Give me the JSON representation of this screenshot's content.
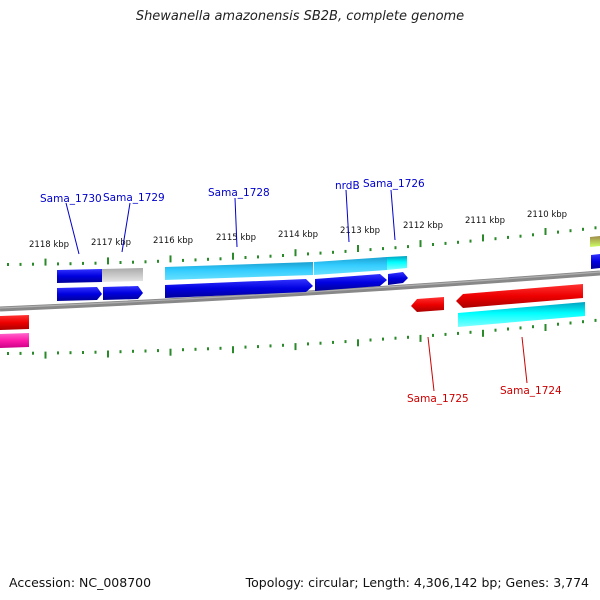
{
  "title": "Shewanella amazonensis SB2B, complete genome",
  "footer": {
    "accession": "Accession: NC_008700",
    "summary": "Topology: circular; Length: 4,306,142 bp; Genes: 3,774"
  },
  "colors": {
    "forward_label": "#0000cc",
    "reverse_label": "#cc0000",
    "tick": "#2a8a2a",
    "backbone": "#888888"
  },
  "ticks": [
    "2118 kbp",
    "2117 kbp",
    "2116 kbp",
    "2115 kbp",
    "2114 kbp",
    "2113 kbp",
    "2112 kbp",
    "2111 kbp",
    "2110 kbp"
  ],
  "genes": [
    {
      "name": "Sama_1730",
      "strand": "forward"
    },
    {
      "name": "Sama_1729",
      "strand": "forward"
    },
    {
      "name": "Sama_1728",
      "strand": "forward"
    },
    {
      "name": "nrdB",
      "strand": "forward"
    },
    {
      "name": "Sama_1726",
      "strand": "forward"
    },
    {
      "name": "Sama_1725",
      "strand": "reverse"
    },
    {
      "name": "Sama_1724",
      "strand": "reverse"
    }
  ]
}
